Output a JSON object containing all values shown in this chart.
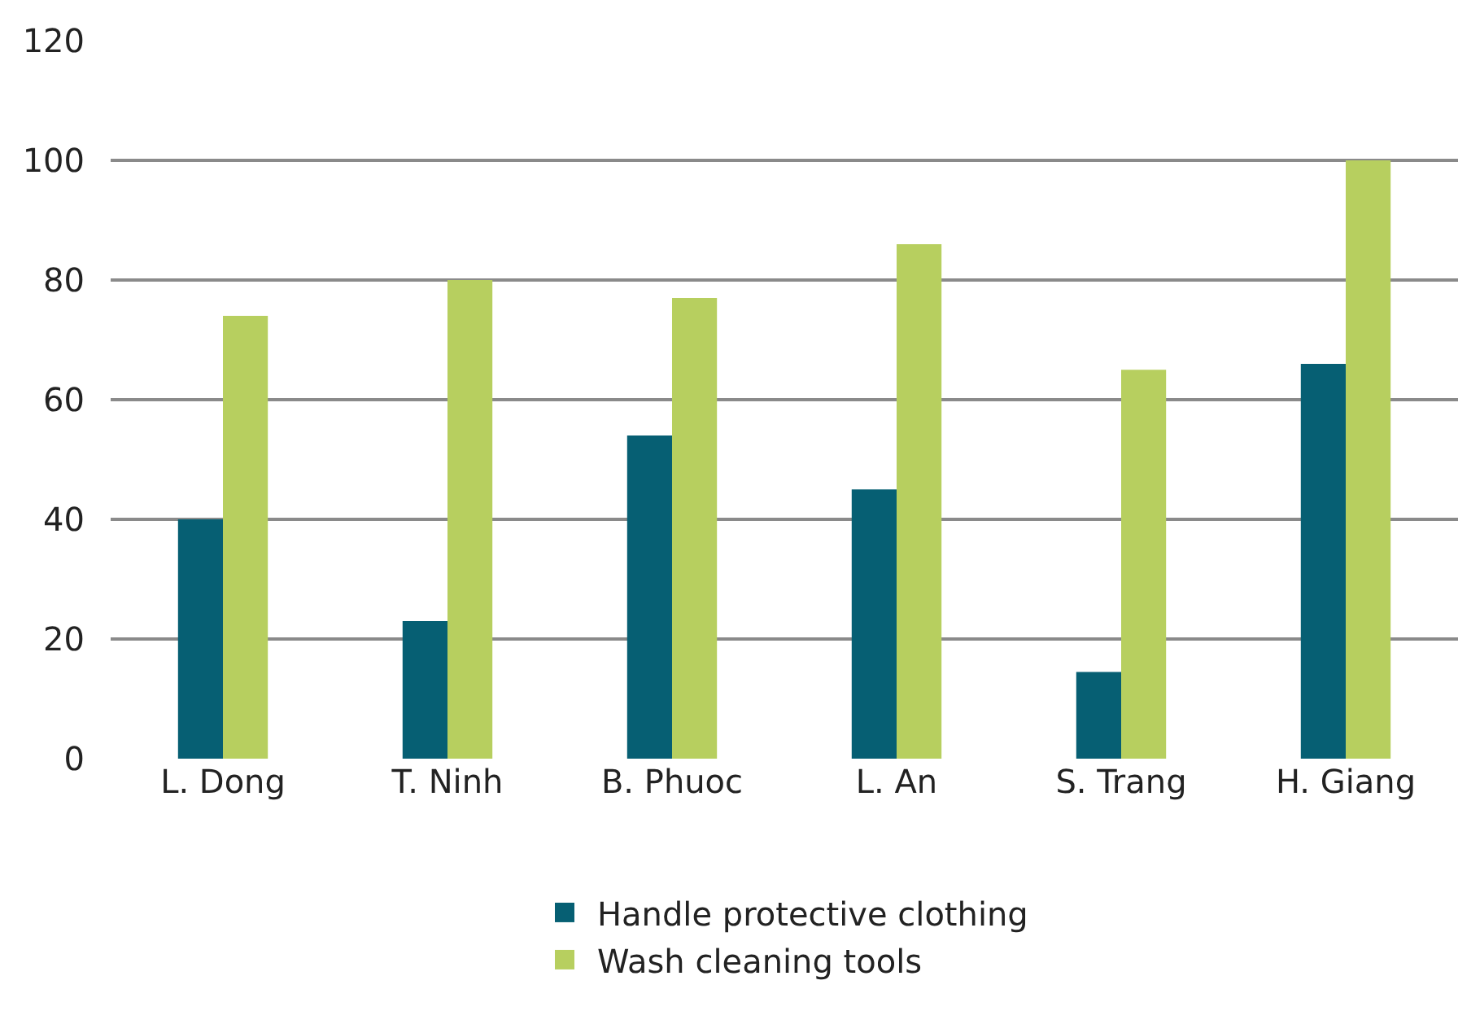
{
  "chart_data": {
    "type": "bar",
    "categories": [
      "L. Dong",
      "T. Ninh",
      "B. Phuoc",
      "L. An",
      "S. Trang",
      "H. Giang"
    ],
    "series": [
      {
        "name": "Handle protective clothing",
        "color": "#065f73",
        "values": [
          40,
          23,
          54,
          45,
          14.5,
          66
        ]
      },
      {
        "name": "Wash cleaning tools",
        "color": "#b7cf5f",
        "values": [
          74,
          80,
          77,
          86,
          65,
          100
        ]
      }
    ],
    "ylim": [
      0,
      120
    ],
    "yticks": [
      0,
      20,
      40,
      60,
      80,
      100,
      120
    ],
    "grid": "y",
    "legend": "bottom"
  }
}
